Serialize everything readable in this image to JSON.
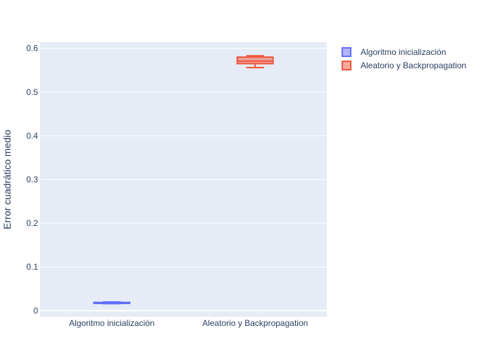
{
  "chart_data": {
    "type": "box",
    "title": "",
    "xlabel": "",
    "ylabel": "Error cuadrático medio",
    "ylim": [
      -0.014,
      0.614
    ],
    "yticks": [
      0,
      0.1,
      0.2,
      0.3,
      0.4,
      0.5,
      0.6
    ],
    "ytick_labels": [
      "0",
      "0.1",
      "0.2",
      "0.3",
      "0.4",
      "0.5",
      "0.6"
    ],
    "grid": true,
    "legend_position": "top-right",
    "categories": [
      "Algoritmo inicialización",
      "Aleatorio y Backpropagation"
    ],
    "series": [
      {
        "name": "Algoritmo inicialización",
        "category": "Algoritmo inicialización",
        "color": "#636efa",
        "min": 0.016,
        "q1": 0.0175,
        "median": 0.018,
        "q3": 0.019,
        "max": 0.02
      },
      {
        "name": "Aleatorio y Backpropagation",
        "category": "Aleatorio y Backpropagation",
        "color": "#ef553b",
        "min": 0.556,
        "q1": 0.565,
        "median": 0.571,
        "q3": 0.58,
        "max": 0.583
      }
    ]
  }
}
